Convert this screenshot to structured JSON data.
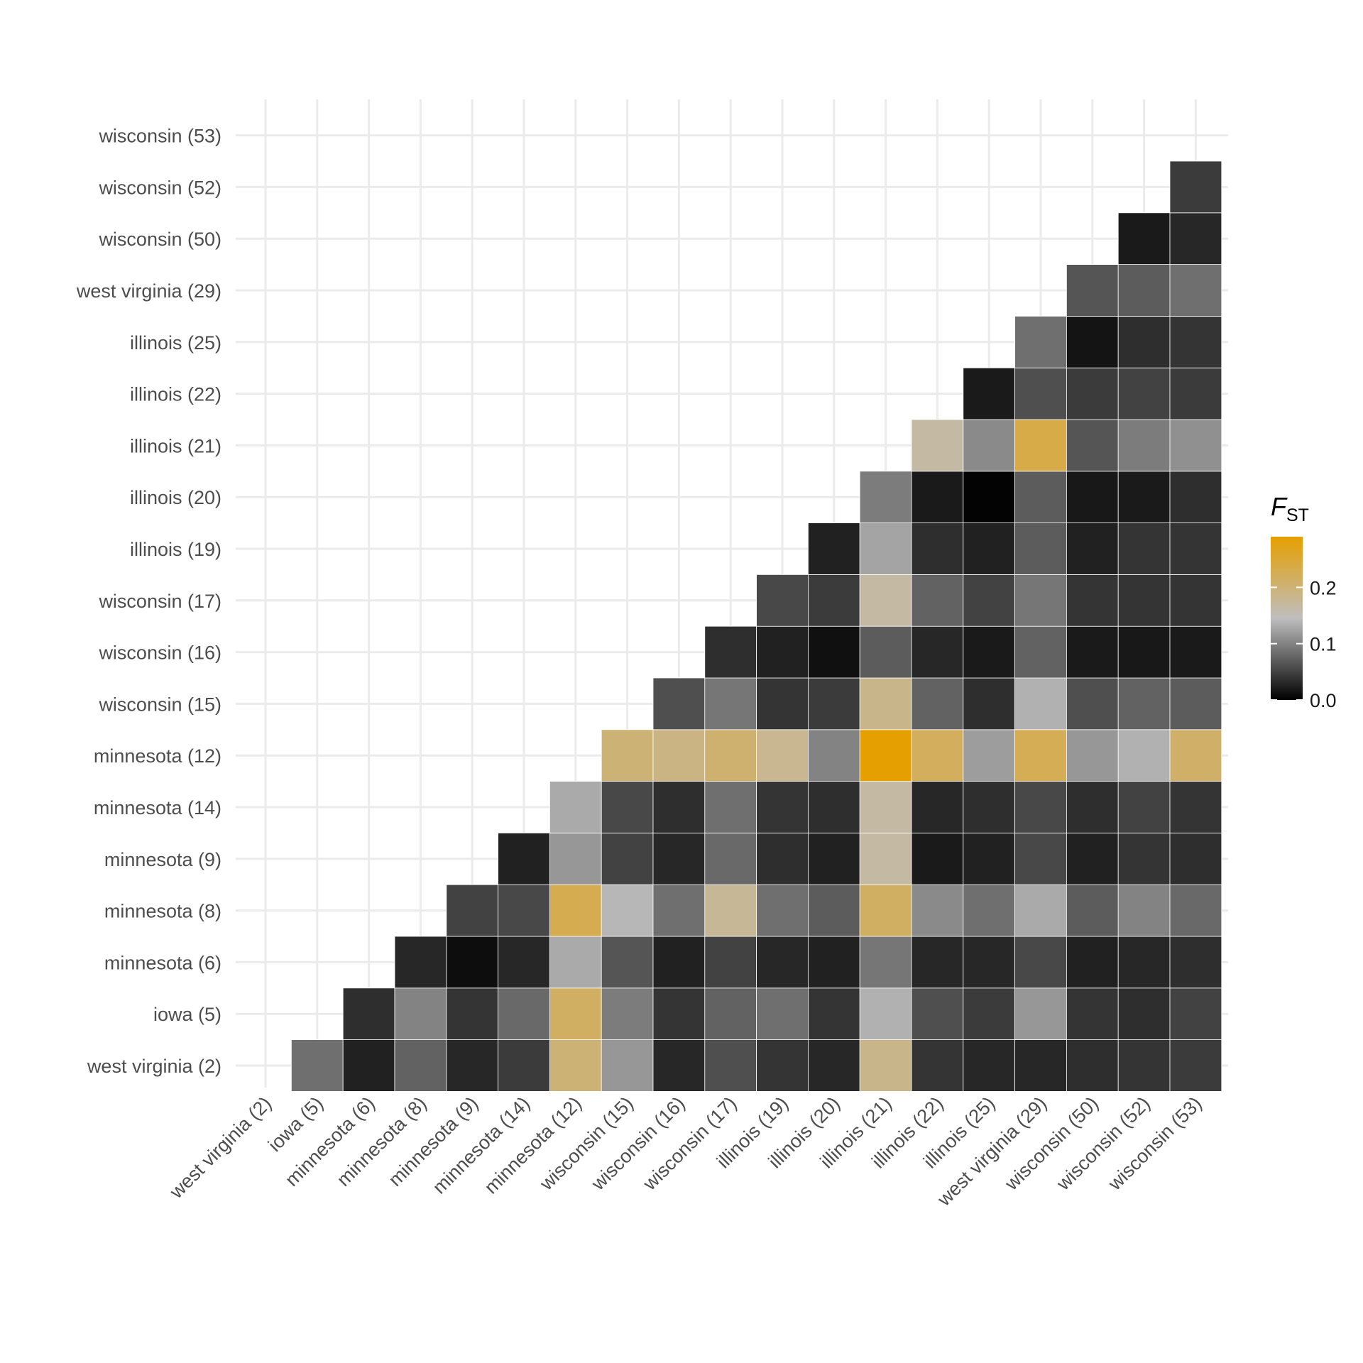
{
  "chart_data": {
    "type": "heatmap",
    "title": "",
    "xlabel": "",
    "ylabel": "",
    "x_categories": [
      "west virginia (2)",
      "iowa (5)",
      "minnesota (6)",
      "minnesota (8)",
      "minnesota (9)",
      "minnesota (14)",
      "minnesota (12)",
      "wisconsin (15)",
      "wisconsin (16)",
      "wisconsin (17)",
      "illinois (19)",
      "illinois (20)",
      "illinois (21)",
      "illinois (22)",
      "illinois (25)",
      "west virginia (29)",
      "wisconsin (50)",
      "wisconsin (52)",
      "wisconsin (53)"
    ],
    "y_categories": [
      "west virginia (2)",
      "iowa (5)",
      "minnesota (6)",
      "minnesota (8)",
      "minnesota (9)",
      "minnesota (14)",
      "minnesota (12)",
      "wisconsin (15)",
      "wisconsin (16)",
      "wisconsin (17)",
      "illinois (19)",
      "illinois (20)",
      "illinois (21)",
      "illinois (22)",
      "illinois (25)",
      "west virginia (29)",
      "wisconsin (50)",
      "wisconsin (52)",
      "wisconsin (53)"
    ],
    "values": [
      [
        null,
        0.085,
        0.025,
        0.075,
        0.03,
        0.045,
        0.2,
        0.115,
        0.03,
        0.06,
        0.04,
        0.03,
        0.185,
        0.04,
        0.03,
        0.03,
        0.035,
        0.04,
        0.045
      ],
      [
        null,
        null,
        0.035,
        0.1,
        0.04,
        0.08,
        0.215,
        0.095,
        0.04,
        0.075,
        0.085,
        0.04,
        0.135,
        0.06,
        0.045,
        0.115,
        0.04,
        0.035,
        0.05
      ],
      [
        null,
        null,
        null,
        0.03,
        0.01,
        0.03,
        0.13,
        0.065,
        0.025,
        0.05,
        0.03,
        0.025,
        0.09,
        0.03,
        0.03,
        0.055,
        0.025,
        0.03,
        0.035
      ],
      [
        null,
        null,
        null,
        null,
        0.05,
        0.055,
        0.23,
        0.14,
        0.085,
        0.175,
        0.085,
        0.07,
        0.215,
        0.105,
        0.085,
        0.13,
        0.07,
        0.1,
        0.08
      ],
      [
        null,
        null,
        null,
        null,
        null,
        0.025,
        0.115,
        0.05,
        0.03,
        0.08,
        0.035,
        0.025,
        0.165,
        0.02,
        0.025,
        0.055,
        0.025,
        0.04,
        0.035
      ],
      [
        null,
        null,
        null,
        null,
        null,
        null,
        0.13,
        0.055,
        0.035,
        0.085,
        0.04,
        0.035,
        0.165,
        0.03,
        0.035,
        0.055,
        0.035,
        0.05,
        0.04
      ],
      [
        null,
        null,
        null,
        null,
        null,
        null,
        null,
        0.2,
        0.19,
        0.205,
        0.18,
        0.1,
        0.29,
        0.22,
        0.12,
        0.225,
        0.115,
        0.135,
        0.21
      ],
      [
        null,
        null,
        null,
        null,
        null,
        null,
        null,
        null,
        0.06,
        0.09,
        0.04,
        0.045,
        0.185,
        0.075,
        0.035,
        0.135,
        0.06,
        0.075,
        0.07
      ],
      [
        null,
        null,
        null,
        null,
        null,
        null,
        null,
        null,
        null,
        0.035,
        0.025,
        0.012,
        0.07,
        0.03,
        0.02,
        0.075,
        0.02,
        0.018,
        0.02
      ],
      [
        null,
        null,
        null,
        null,
        null,
        null,
        null,
        null,
        null,
        null,
        0.055,
        0.045,
        0.165,
        0.075,
        0.05,
        0.09,
        0.04,
        0.04,
        0.04
      ],
      [
        null,
        null,
        null,
        null,
        null,
        null,
        null,
        null,
        null,
        null,
        null,
        0.025,
        0.125,
        0.035,
        0.025,
        0.07,
        0.025,
        0.04,
        0.04
      ],
      [
        null,
        null,
        null,
        null,
        null,
        null,
        null,
        null,
        null,
        null,
        null,
        null,
        0.095,
        0.02,
        0.002,
        0.07,
        0.018,
        0.02,
        0.035
      ],
      [
        null,
        null,
        null,
        null,
        null,
        null,
        null,
        null,
        null,
        null,
        null,
        null,
        null,
        0.165,
        0.105,
        0.235,
        0.065,
        0.095,
        0.11
      ],
      [
        null,
        null,
        null,
        null,
        null,
        null,
        null,
        null,
        null,
        null,
        null,
        null,
        null,
        null,
        0.02,
        0.06,
        0.045,
        0.05,
        0.045
      ],
      [
        null,
        null,
        null,
        null,
        null,
        null,
        null,
        null,
        null,
        null,
        null,
        null,
        null,
        null,
        null,
        0.085,
        0.015,
        0.035,
        0.04
      ],
      [
        null,
        null,
        null,
        null,
        null,
        null,
        null,
        null,
        null,
        null,
        null,
        null,
        null,
        null,
        null,
        null,
        0.065,
        0.07,
        0.085
      ],
      [
        null,
        null,
        null,
        null,
        null,
        null,
        null,
        null,
        null,
        null,
        null,
        null,
        null,
        null,
        null,
        null,
        null,
        0.02,
        0.03
      ],
      [
        null,
        null,
        null,
        null,
        null,
        null,
        null,
        null,
        null,
        null,
        null,
        null,
        null,
        null,
        null,
        null,
        null,
        null,
        0.045
      ],
      [
        null,
        null,
        null,
        null,
        null,
        null,
        null,
        null,
        null,
        null,
        null,
        null,
        null,
        null,
        null,
        null,
        null,
        null,
        null
      ]
    ],
    "legend": {
      "title_main": "F",
      "title_sub": "ST",
      "range": [
        0,
        0.29
      ],
      "ticks": [
        0.0,
        0.1,
        0.2
      ],
      "tick_labels": [
        "0.0",
        "0.1",
        "0.2"
      ],
      "colors": [
        "#000000",
        "#bebebe",
        "#e69f00"
      ],
      "placement": "right"
    },
    "grid": true
  }
}
